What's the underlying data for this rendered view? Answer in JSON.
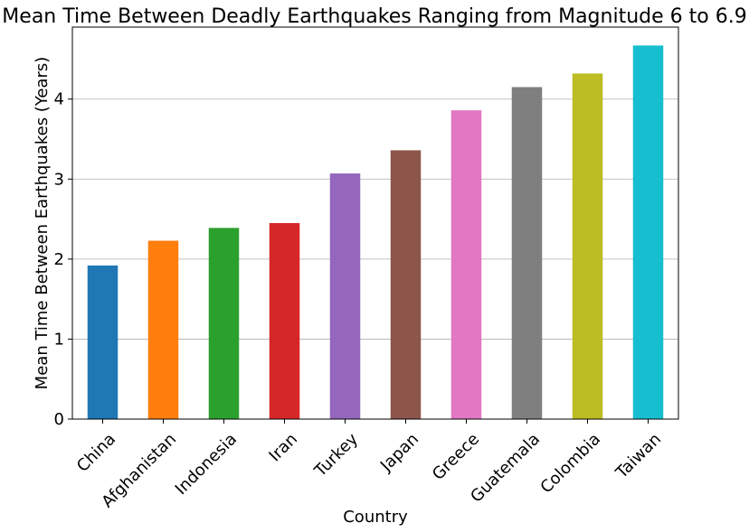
{
  "chart_data": {
    "type": "bar",
    "title": "Mean Time Between Deadly Earthquakes Ranging from Magnitude 6 to 6.9",
    "xlabel": "Country",
    "ylabel": "Mean Time Between Earthquakes (Years)",
    "categories": [
      "China",
      "Afghanistan",
      "Indonesia",
      "Iran",
      "Turkey",
      "Japan",
      "Greece",
      "Guatemala",
      "Colombia",
      "Taiwan"
    ],
    "values": [
      1.92,
      2.23,
      2.39,
      2.45,
      3.07,
      3.36,
      3.86,
      4.15,
      4.32,
      4.67
    ],
    "colors": [
      "#1f77b4",
      "#ff7f0e",
      "#2ca02c",
      "#d62728",
      "#9467bd",
      "#8c564b",
      "#e377c2",
      "#7f7f7f",
      "#bcbd22",
      "#17becf"
    ],
    "ylim": [
      0,
      4.9
    ],
    "yticks": [
      0,
      1,
      2,
      3,
      4
    ],
    "grid": "y",
    "legend": "none"
  }
}
